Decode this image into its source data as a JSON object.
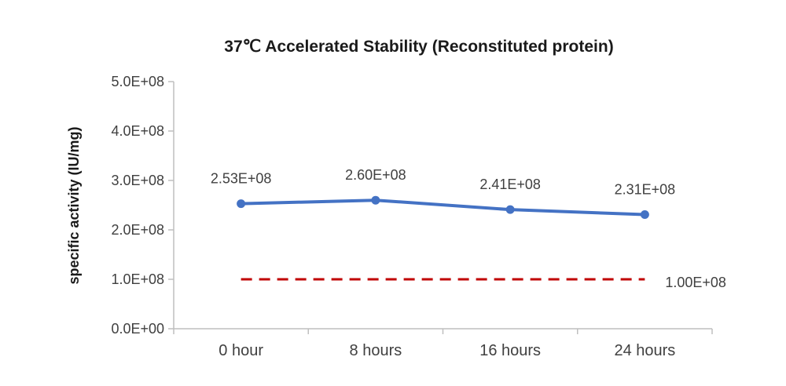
{
  "chart_data": {
    "type": "line",
    "title": "37℃ Accelerated Stability (Reconstituted protein)",
    "ylabel": "specific activity (IU/mg)",
    "xlabel": "",
    "categories": [
      "0 hour",
      "8 hours",
      "16 hours",
      "24 hours"
    ],
    "ylim": [
      0,
      500000000
    ],
    "y_ticks": [
      0,
      100000000,
      200000000,
      300000000,
      400000000,
      500000000
    ],
    "y_tick_labels": [
      "0.0E+00",
      "1.0E+08",
      "2.0E+08",
      "3.0E+08",
      "4.0E+08",
      "5.0E+08"
    ],
    "grid": false,
    "series": [
      {
        "values": [
          253000000,
          260000000,
          241000000,
          231000000
        ],
        "data_labels": [
          "2.53E+08",
          "2.60E+08",
          "2.41E+08",
          "2.31E+08"
        ],
        "color": "#4472C4",
        "style": "solid",
        "markers": true
      },
      {
        "values": [
          100000000,
          100000000,
          100000000,
          100000000
        ],
        "data_labels": [
          "1.00E+08"
        ],
        "color": "#C00000",
        "style": "dashed",
        "markers": false
      }
    ]
  }
}
